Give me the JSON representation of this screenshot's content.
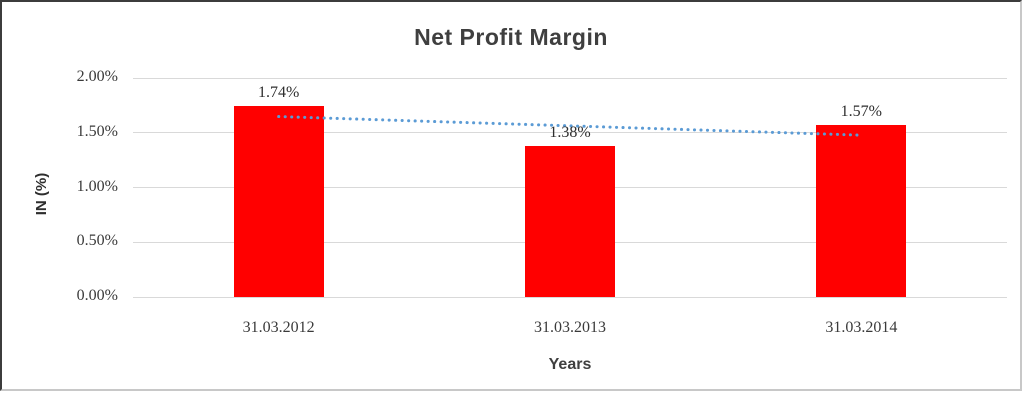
{
  "chart_data": {
    "type": "bar",
    "title": "Net Profit Margin",
    "categories": [
      "31.03.2012",
      "31.03.2013",
      "31.03.2014"
    ],
    "values": [
      1.74,
      1.38,
      1.57
    ],
    "data_labels": [
      "1.74%",
      "1.38%",
      "1.57%"
    ],
    "xlabel": "Years",
    "ylabel": "IN (%)",
    "ylim": [
      0,
      2
    ],
    "ytick_step": 0.5,
    "ytick_labels": [
      "0.00%",
      "0.50%",
      "1.00%",
      "1.50%",
      "2.00%"
    ],
    "grid": true,
    "legend_position": "none",
    "bar_color": "#FF0000",
    "trendline": {
      "type": "linear",
      "style": "dotted",
      "color": "#5B9BD5",
      "endpoints": [
        1.648,
        1.478
      ]
    }
  },
  "styles": {
    "title_color": "#3F3F3F",
    "axis_text_color": "#3A3A3A",
    "gridline_color": "#D9D9D9",
    "frame_dark": "#3C3C3C",
    "frame_light": "#C8C8C8",
    "background": "#FFFFFF"
  }
}
